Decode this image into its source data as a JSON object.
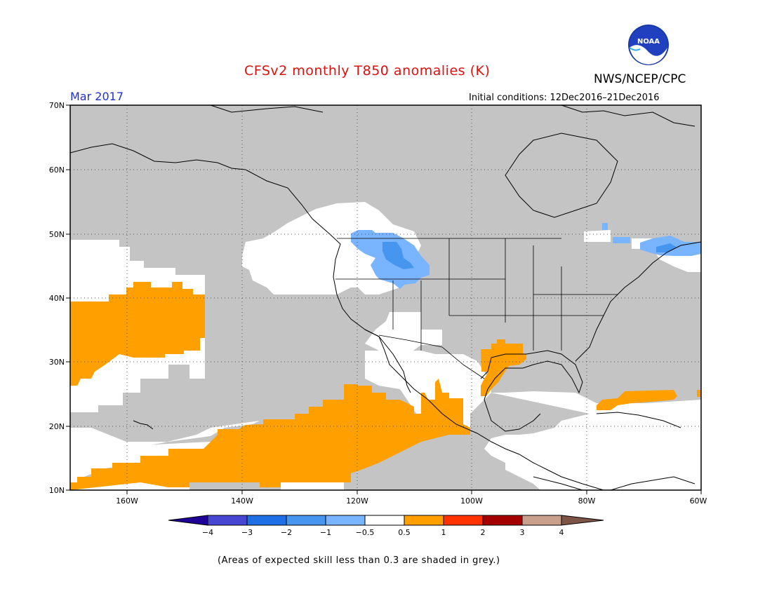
{
  "header": {
    "title": "CFSv2 monthly T850 anomalies (K)",
    "agency": "NWS/NCEP/CPC",
    "period": "Mar 2017",
    "initial_conditions": "Initial conditions: 12Dec2016–21Dec2016"
  },
  "logo": {
    "text": "NOAA"
  },
  "map": {
    "lat_labels": [
      "70N",
      "60N",
      "50N",
      "40N",
      "30N",
      "20N",
      "10N"
    ],
    "lon_labels": [
      "160W",
      "140W",
      "120W",
      "100W",
      "80W",
      "60W"
    ],
    "colors": {
      "grey_low_skill": "#c4c4c4",
      "white_neutral": "#ffffff",
      "orange_0_5_to_1": "#ffa000",
      "light_blue_neg_0_5_to_neg_1": "#78b4ff",
      "blue_neg_1_to_neg_2": "#4696f0"
    }
  },
  "colorbar": {
    "labels": [
      "−4",
      "−3",
      "−2",
      "−1",
      "−0.5",
      "0.5",
      "1",
      "2",
      "3",
      "4"
    ],
    "colors": [
      "#1e0096",
      "#4646d2",
      "#1e6ee6",
      "#4696f0",
      "#78b4ff",
      "#ffffff",
      "#ffa000",
      "#ff3200",
      "#a50000",
      "#c8a08c",
      "#7d5446"
    ]
  },
  "footnote": "(Areas of expected skill less than 0.3 are shaded in grey.)"
}
